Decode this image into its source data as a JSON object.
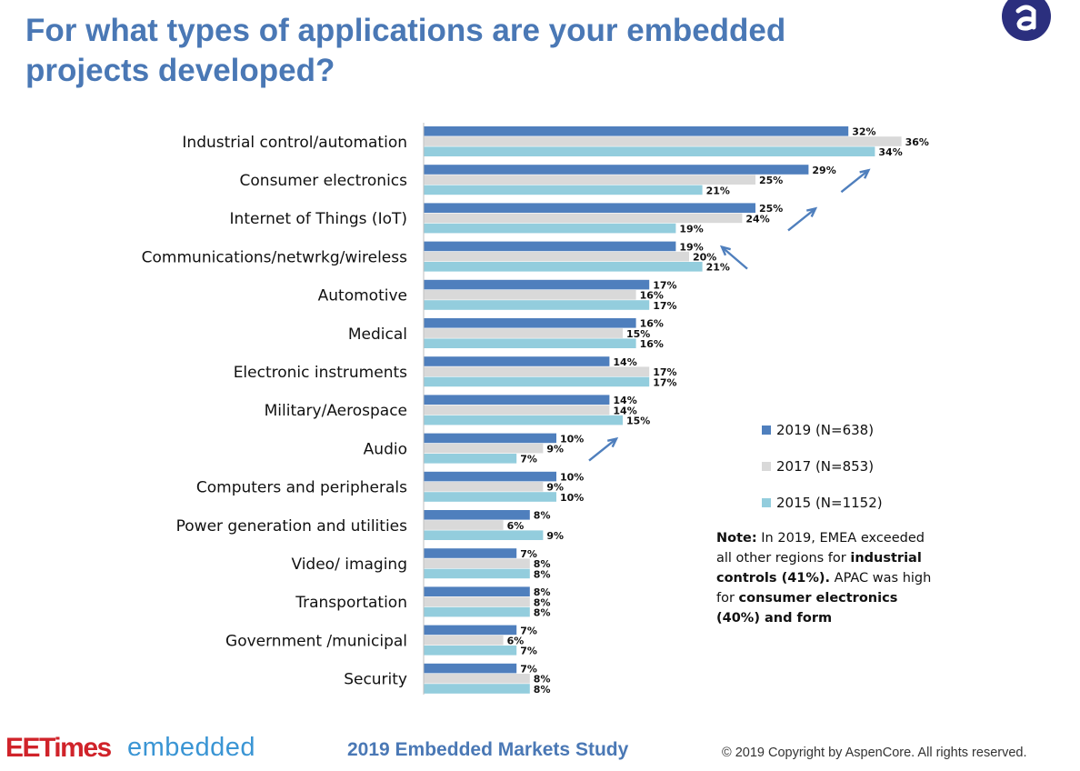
{
  "page": {
    "title_line1": "For what types of applications are your embedded",
    "title_line2": "projects developed?"
  },
  "note": {
    "prefix": "Note:",
    "text1": " In 2019, EMEA exceeded all other regions for ",
    "bold1": "industrial controls (41%).",
    "text2": " APAC was high for ",
    "bold2": "consumer electronics (40%) and form"
  },
  "footer": {
    "brand_ee": "EETimes",
    "brand_embedded": "embedded",
    "study": "2019 Embedded Markets Study",
    "copyright": "© 2019 Copyright by AspenCore. All rights reserved."
  },
  "chart_data": {
    "type": "bar",
    "orientation": "horizontal",
    "categories": [
      "Industrial control/automation",
      "Consumer electronics",
      "Internet of Things (IoT)",
      "Communications/netwrkg/wireless",
      "Automotive",
      "Medical",
      "Electronic instruments",
      "Military/Aerospace",
      "Audio",
      "Computers and peripherals",
      "Power generation and utilities",
      "Video/ imaging",
      "Transportation",
      "Government /municipal",
      "Security"
    ],
    "series": [
      {
        "name": "2019 (N=638)",
        "color": "#4f7fbd",
        "values": [
          32,
          29,
          25,
          19,
          17,
          16,
          14,
          14,
          10,
          10,
          8,
          7,
          8,
          7,
          7
        ]
      },
      {
        "name": "2017 (N=853)",
        "color": "#d9d9d9",
        "values": [
          36,
          25,
          24,
          20,
          16,
          15,
          17,
          14,
          9,
          9,
          6,
          8,
          8,
          6,
          8
        ]
      },
      {
        "name": "2015 (N=1152)",
        "color": "#93cddd",
        "values": [
          34,
          21,
          19,
          21,
          17,
          16,
          17,
          15,
          7,
          10,
          9,
          8,
          8,
          7,
          8
        ]
      }
    ],
    "value_suffix": "%",
    "trend_arrows": [
      {
        "category": "Consumer electronics",
        "direction": "up"
      },
      {
        "category": "Internet of Things (IoT)",
        "direction": "up"
      },
      {
        "category": "Communications/netwrkg/wireless",
        "direction": "down"
      },
      {
        "category": "Audio",
        "direction": "up"
      }
    ],
    "xlim": [
      0,
      40
    ],
    "grid": false,
    "legend_position": "right"
  }
}
